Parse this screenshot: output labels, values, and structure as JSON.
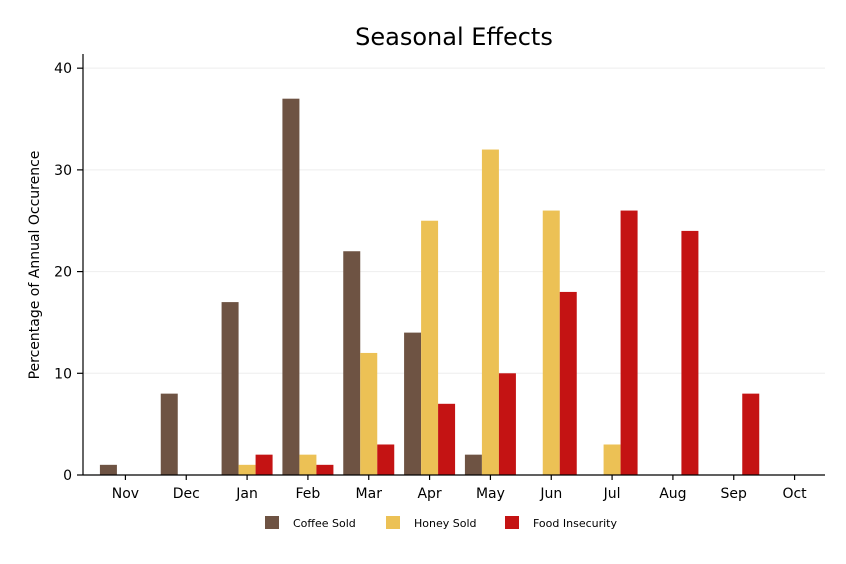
{
  "chart_data": {
    "type": "bar",
    "title": "Seasonal Effects",
    "xlabel": "",
    "ylabel": "Percentage of Annual Occurence",
    "ylim": [
      0,
      41
    ],
    "yticks": [
      0,
      10,
      20,
      30,
      40
    ],
    "grid": true,
    "legend_position": "bottom",
    "categories": [
      "Nov",
      "Dec",
      "Jan",
      "Feb",
      "Mar",
      "Apr",
      "May",
      "Jun",
      "Jul",
      "Aug",
      "Sep",
      "Oct"
    ],
    "series": [
      {
        "name": "Coffee Sold",
        "color": "#6e5343",
        "values": [
          1,
          8,
          17,
          37,
          22,
          14,
          2,
          0,
          0,
          0,
          0,
          0
        ]
      },
      {
        "name": "Honey Sold",
        "color": "#ecc155",
        "values": [
          0,
          0,
          1,
          2,
          12,
          25,
          32,
          26,
          3,
          0,
          0,
          0
        ]
      },
      {
        "name": "Food Insecurity",
        "color": "#c41313",
        "values": [
          0,
          0,
          2,
          1,
          3,
          7,
          10,
          18,
          26,
          24,
          8,
          0
        ]
      }
    ]
  }
}
